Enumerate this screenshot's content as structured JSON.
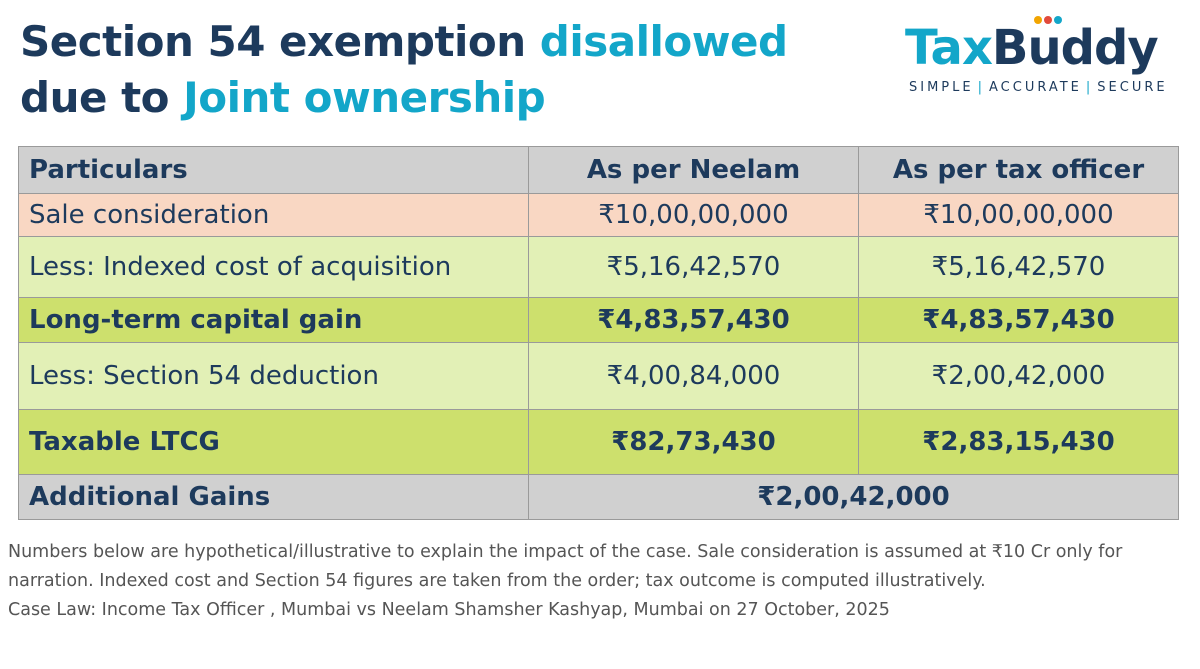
{
  "header": {
    "title_part1": "Section 54 exemption ",
    "title_part2": "disallowed",
    "title_part3": "due to ",
    "title_part4": "Joint ownership",
    "colors": {
      "navy": "#1d3a5c",
      "teal": "#13a6c9"
    }
  },
  "logo": {
    "word_tax": "Tax",
    "word_b": "B",
    "word_u": "u",
    "word_ddy": "ddy",
    "tag_1": "SIMPLE",
    "tag_sep": "|",
    "tag_2": "ACCURATE",
    "tag_3": "SECURE",
    "dot_colors": [
      "#f2a500",
      "#e24a3b",
      "#13a6c9"
    ]
  },
  "table": {
    "headers": [
      "Particulars",
      "As per Neelam",
      "As per tax officer"
    ],
    "rows": [
      {
        "label": "Sale consideration",
        "neelam": "₹10,00,00,000",
        "officer": "₹10,00,00,000"
      },
      {
        "label": "Less: Indexed cost of acquisition",
        "neelam": "₹5,16,42,570",
        "officer": "₹5,16,42,570"
      },
      {
        "label": "Long-term capital gain",
        "neelam": "₹4,83,57,430",
        "officer": "₹4,83,57,430"
      },
      {
        "label": "Less: Section 54 deduction",
        "neelam": "₹4,00,84,000",
        "officer": "₹2,00,42,000"
      },
      {
        "label": "Taxable LTCG",
        "neelam": "₹82,73,430",
        "officer": "₹2,83,15,430"
      }
    ],
    "total": {
      "label": "Additional Gains",
      "value": "₹2,00,42,000"
    },
    "colors": {
      "header": "#d0d0d0",
      "sale": "#f9d7c3",
      "light": "#e2f0b6",
      "dark": "#cde06d"
    }
  },
  "footnote": {
    "line1": "Numbers below are hypothetical/illustrative to explain the impact of the case. Sale consideration is assumed at ₹10 Cr only for narration. Indexed cost and Section 54 figures are taken from the order; tax outcome is computed illustratively.",
    "line2": "Case Law: Income Tax Officer , Mumbai vs Neelam Shamsher Kashyap, Mumbai on 27 October, 2025"
  }
}
